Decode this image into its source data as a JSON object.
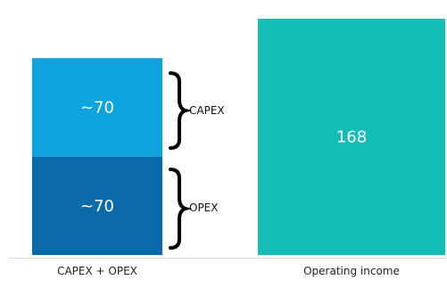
{
  "chart_data": {
    "type": "bar",
    "stacked": true,
    "categories": [
      "CAPEX + OPEX",
      "Operating income"
    ],
    "series": [
      {
        "name": "OPEX",
        "values": [
          70,
          null
        ],
        "labels": [
          "~70",
          null
        ],
        "color": "#0a6aaa"
      },
      {
        "name": "CAPEX",
        "values": [
          70,
          null
        ],
        "labels": [
          "~70",
          null
        ],
        "color": "#0ea3dc"
      },
      {
        "name": "",
        "values": [
          null,
          168
        ],
        "labels": [
          null,
          "168"
        ],
        "color": "#14bdb5"
      }
    ],
    "annotations": [
      "CAPEX",
      "OPEX"
    ],
    "title": "",
    "xlabel": "",
    "ylabel": "",
    "ylim": [
      0,
      175
    ],
    "grid": false,
    "legend": "none"
  },
  "colors": {
    "capex": "#0ea3dc",
    "opex": "#0a6aaa",
    "income": "#14bdb5",
    "bar_text": "#ffffff"
  }
}
